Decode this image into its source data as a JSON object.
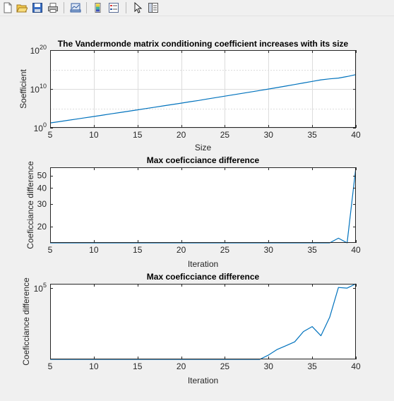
{
  "toolbar": {
    "items": [
      {
        "name": "new-figure-icon"
      },
      {
        "name": "open-file-icon"
      },
      {
        "name": "save-icon"
      },
      {
        "name": "print-icon"
      },
      {
        "name": "link-plot-icon"
      },
      {
        "name": "insert-colorbar-icon"
      },
      {
        "name": "insert-legend-icon"
      },
      {
        "name": "edit-plot-icon"
      },
      {
        "name": "property-inspector-icon"
      }
    ]
  },
  "colors": {
    "line": "#0072bd",
    "axes_bg": "#ffffff",
    "figure_bg": "#f0f0f0",
    "grid": "#dcdcdc"
  },
  "chart_data": [
    {
      "type": "line",
      "title": "The Vandermonde matrix conditioning coefficient increases with its size",
      "xlabel": "Size",
      "ylabel": "Soefficient",
      "xscale": "linear",
      "yscale": "log",
      "xlim": [
        5,
        40
      ],
      "ylim": [
        1,
        1e+20
      ],
      "grid": true,
      "xticks": [
        5,
        10,
        15,
        20,
        25,
        30,
        35,
        40
      ],
      "xtick_labels": [
        "5",
        "10",
        "15",
        "20",
        "25",
        "30",
        "35",
        "40"
      ],
      "yticks": [
        1,
        10000000000.0,
        1e+20
      ],
      "ytick_labels": [
        {
          "base": "10",
          "exp": "0"
        },
        {
          "base": "10",
          "exp": "10"
        },
        {
          "base": "10",
          "exp": "20"
        }
      ],
      "series": [
        {
          "x": [
            5,
            6,
            7,
            8,
            9,
            10,
            11,
            12,
            13,
            14,
            15,
            16,
            17,
            18,
            19,
            20,
            21,
            22,
            23,
            24,
            25,
            26,
            27,
            28,
            29,
            30,
            31,
            32,
            33,
            34,
            35,
            36,
            37,
            38,
            39,
            40
          ],
          "y": [
            18.0,
            37.0,
            81.0,
            170.0,
            380.0,
            820.0,
            1800.0,
            3900.0,
            8600.0,
            19000.0,
            42000.0,
            93000.0,
            200000.0,
            450000.0,
            1000000.0,
            2200000.0,
            5100000.0,
            11000000.0,
            26000000.0,
            60000000.0,
            140000000.0,
            320000000.0,
            740000000.0,
            1700000000.0,
            4000000000.0,
            9500000000.0,
            23000000000.0,
            56000000000.0,
            140000000000.0,
            350000000000.0,
            890000000000.0,
            2200000000000.0,
            4000000000000.0,
            6300000000000.0,
            16000000000000.0,
            50000000000000.0
          ]
        }
      ]
    },
    {
      "type": "line",
      "title": "Max coeficciance difference",
      "xlabel": "Iteration",
      "ylabel": "Coeficciance difference",
      "xscale": "linear",
      "yscale": "log",
      "xlim": [
        5,
        40
      ],
      "ylim": [
        15,
        58
      ],
      "grid": false,
      "xticks": [
        5,
        10,
        15,
        20,
        25,
        30,
        35,
        40
      ],
      "xtick_labels": [
        "5",
        "10",
        "15",
        "20",
        "25",
        "30",
        "35",
        "40"
      ],
      "yticks": [
        20,
        30,
        40,
        50
      ],
      "ytick_labels": [
        "20",
        "30",
        "40",
        "50"
      ],
      "series": [
        {
          "x": [
            5,
            6,
            7,
            8,
            9,
            10,
            11,
            12,
            13,
            14,
            15,
            16,
            17,
            18,
            19,
            20,
            21,
            22,
            23,
            24,
            25,
            26,
            27,
            28,
            29,
            30,
            31,
            32,
            33,
            34,
            35,
            36,
            37,
            38,
            39,
            40
          ],
          "y": [
            15,
            15,
            15,
            15,
            15,
            15,
            15,
            15,
            15,
            15,
            15,
            15,
            15,
            15,
            15,
            15,
            15,
            15,
            15,
            15,
            15,
            15,
            15,
            15,
            15,
            15,
            15,
            15,
            15,
            15,
            15,
            15,
            15,
            16.3,
            15,
            58
          ]
        }
      ]
    },
    {
      "type": "line",
      "title": "Max coeficciance difference",
      "xlabel": "Iteration",
      "ylabel": "Coeficciance difference",
      "xscale": "linear",
      "yscale": "log",
      "xlim": [
        5,
        40
      ],
      "ylim": [
        1,
        200000.0
      ],
      "grid": false,
      "xticks": [
        5,
        10,
        15,
        20,
        25,
        30,
        35,
        40
      ],
      "xtick_labels": [
        "5",
        "10",
        "15",
        "20",
        "25",
        "30",
        "35",
        "40"
      ],
      "yticks": [
        100000.0
      ],
      "ytick_labels": [
        {
          "base": "10",
          "exp": "5"
        }
      ],
      "series": [
        {
          "x": [
            5,
            6,
            7,
            8,
            9,
            10,
            11,
            12,
            13,
            14,
            15,
            16,
            17,
            18,
            19,
            20,
            21,
            22,
            23,
            24,
            25,
            26,
            27,
            28,
            29,
            30,
            31,
            32,
            33,
            34,
            35,
            36,
            37,
            38,
            39,
            40
          ],
          "y": [
            1,
            1,
            1,
            1,
            1,
            1,
            1,
            1,
            1,
            1,
            1,
            1,
            1,
            1,
            1,
            1,
            1,
            1,
            1,
            1,
            1,
            1,
            1,
            1,
            1,
            2,
            5,
            9,
            17,
            90,
            200,
            45,
            900,
            110000.0,
            100000.0,
            200000.0
          ]
        }
      ]
    }
  ]
}
